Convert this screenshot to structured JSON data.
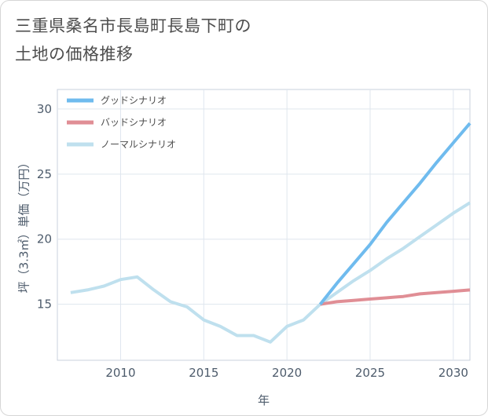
{
  "chart_data": {
    "type": "line",
    "title": "三重県桑名市長島町長島下町の\n土地の価格推移",
    "xlabel": "年",
    "ylabel": "坪（3.3㎡）単価（万円）",
    "xlim": [
      2006.2,
      2031
    ],
    "ylim": [
      10.7,
      31.5
    ],
    "x_ticks": [
      2010,
      2015,
      2020,
      2025,
      2030
    ],
    "y_ticks": [
      15,
      20,
      25,
      30
    ],
    "grid": true,
    "legend_position": "top-left",
    "series": [
      {
        "name": "グッドシナリオ",
        "color": "#6fbbee",
        "x": [
          2022,
          2023,
          2024,
          2025,
          2026,
          2027,
          2028,
          2029,
          2030,
          2031
        ],
        "y": [
          15.0,
          16.6,
          18.1,
          19.6,
          21.3,
          22.8,
          24.3,
          25.9,
          27.4,
          28.9
        ]
      },
      {
        "name": "バッドシナリオ",
        "color": "#e08e95",
        "x": [
          2022,
          2023,
          2024,
          2025,
          2026,
          2027,
          2028,
          2029,
          2030,
          2031
        ],
        "y": [
          15.0,
          15.2,
          15.3,
          15.4,
          15.5,
          15.6,
          15.8,
          15.9,
          16.0,
          16.1
        ]
      },
      {
        "name": "ノーマルシナリオ",
        "color": "#bfe0ee",
        "x": [
          2007,
          2008,
          2009,
          2010,
          2011,
          2012,
          2013,
          2014,
          2015,
          2016,
          2017,
          2018,
          2019,
          2020,
          2021,
          2022,
          2023,
          2024,
          2025,
          2026,
          2027,
          2028,
          2029,
          2030,
          2031
        ],
        "y": [
          15.9,
          16.1,
          16.4,
          16.9,
          17.1,
          16.1,
          15.2,
          14.8,
          13.8,
          13.3,
          12.6,
          12.6,
          12.1,
          13.3,
          13.8,
          15.0,
          15.9,
          16.8,
          17.6,
          18.5,
          19.3,
          20.2,
          21.1,
          22.0,
          22.8
        ]
      }
    ]
  }
}
